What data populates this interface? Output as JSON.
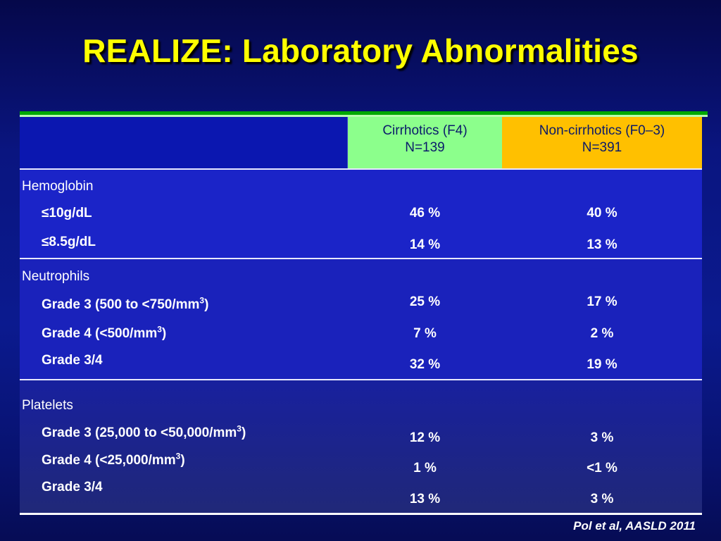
{
  "title": "REALIZE: Laboratory Abnormalities",
  "columns": {
    "cirrhotics": {
      "line1": "Cirrhotics (F4)",
      "line2": "N=139"
    },
    "noncirrhotics": {
      "line1": "Non-cirrhotics (F0–3)",
      "line2": "N=391"
    }
  },
  "groups": [
    {
      "label": "Hemoglobin",
      "rows": [
        {
          "label": "≤10g/dL",
          "c": "46 %",
          "n": "40 %"
        },
        {
          "label": "≤8.5g/dL",
          "c": "14 %",
          "n": "13 %"
        }
      ]
    },
    {
      "label": "Neutrophils",
      "rows": [
        {
          "label_pre": "Grade 3 (500 to <750/mm",
          "sup": "3",
          "label_post": ")",
          "c": "25 %",
          "n": "17 %"
        },
        {
          "label_pre": "Grade 4 (<500/mm",
          "sup": "3",
          "label_post": ")",
          "c": "7 %",
          "n": "2 %"
        },
        {
          "label": "Grade 3/4",
          "c": "32 %",
          "n": "19 %"
        }
      ]
    },
    {
      "label": "Platelets",
      "rows": [
        {
          "label_pre": "Grade 3 (25,000 to <50,000/mm",
          "sup": "3",
          "label_post": ")",
          "c": "12 %",
          "n": "3 %"
        },
        {
          "label_pre": "Grade 4 (<25,000/mm",
          "sup": "3",
          "label_post": ")",
          "c": "1 %",
          "n": "<1 %"
        },
        {
          "label": "Grade 3/4",
          "c": "13 %",
          "n": "3 %"
        }
      ]
    }
  ],
  "citation": "Pol et al, AASLD 2011",
  "colors": {
    "title": "#ffff00",
    "cirrhotics_header": "#8cff8c",
    "noncirrhotics_header": "#ffc000",
    "rule": "#00a800"
  }
}
